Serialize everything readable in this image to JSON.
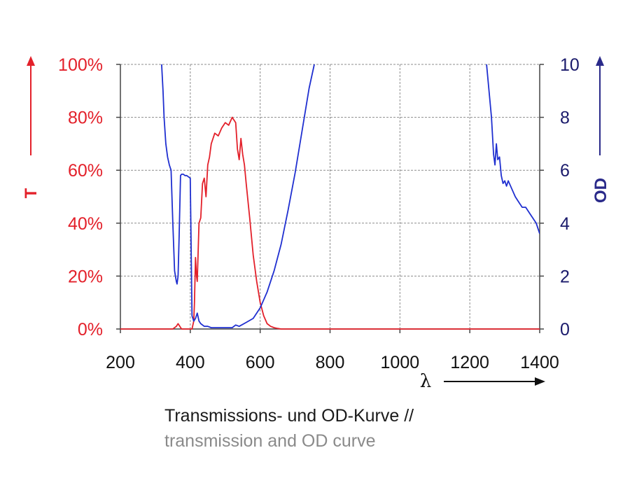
{
  "chart_data": {
    "type": "line",
    "title": "",
    "xlabel": "λ",
    "ylabel_left": "T",
    "ylabel_right": "OD",
    "xlim": [
      200,
      1400
    ],
    "ylim_left": [
      0,
      100
    ],
    "ylim_right": [
      0,
      10
    ],
    "x_ticks": [
      "200",
      "400",
      "600",
      "800",
      "1000",
      "1200",
      "1400"
    ],
    "y_ticks_left": [
      "0%",
      "20%",
      "40%",
      "60%",
      "80%",
      "100%"
    ],
    "y_ticks_right": [
      "0",
      "2",
      "4",
      "6",
      "8",
      "10"
    ],
    "grid": true,
    "colors": {
      "T": "#e3202a",
      "OD": "#1f2fd0",
      "left_axis": "#e3202a",
      "right_axis": "#1a1a6b"
    },
    "series": [
      {
        "axis": "left",
        "x": [
          200,
          350,
          360,
          365,
          370,
          375,
          380,
          405,
          410,
          412,
          415,
          418,
          420,
          425,
          430,
          435,
          440,
          445,
          450,
          455,
          460,
          470,
          480,
          490,
          500,
          510,
          520,
          530,
          535,
          540,
          545,
          550,
          555,
          560,
          570,
          580,
          590,
          600,
          610,
          620,
          630,
          640,
          650,
          660,
          1400
        ],
        "y": [
          0,
          0,
          1,
          2,
          1,
          0,
          0,
          0,
          3,
          10,
          27,
          20,
          18,
          40,
          42,
          55,
          57,
          50,
          62,
          65,
          70,
          74,
          73,
          76,
          78,
          77,
          80,
          78,
          68,
          64,
          72,
          66,
          62,
          55,
          42,
          28,
          18,
          10,
          5,
          2,
          1,
          0.5,
          0.2,
          0,
          0
        ]
      },
      {
        "axis": "right",
        "x": [
          318,
          322,
          325,
          330,
          335,
          340,
          345,
          350,
          355,
          360,
          362,
          365,
          368,
          372,
          375,
          380,
          385,
          390,
          395,
          400,
          405,
          410,
          415,
          420,
          425,
          430,
          440,
          450,
          460,
          480,
          500,
          520,
          530,
          540,
          560,
          580,
          600,
          620,
          640,
          660,
          680,
          700,
          720,
          740,
          755,
          1248,
          1255,
          1262,
          1268,
          1272,
          1276,
          1280,
          1285,
          1290,
          1295,
          1300,
          1305,
          1310,
          1320,
          1330,
          1340,
          1350,
          1360,
          1370,
          1380,
          1390,
          1400
        ],
        "y": [
          10,
          9.0,
          8.0,
          7.0,
          6.5,
          6.2,
          6.0,
          4.0,
          2.2,
          1.8,
          1.7,
          2.0,
          3.5,
          5.8,
          5.85,
          5.85,
          5.8,
          5.8,
          5.75,
          5.7,
          0.5,
          0.3,
          0.4,
          0.6,
          0.3,
          0.2,
          0.1,
          0.1,
          0.05,
          0.05,
          0.05,
          0.05,
          0.15,
          0.1,
          0.25,
          0.4,
          0.8,
          1.4,
          2.2,
          3.2,
          4.5,
          5.9,
          7.5,
          9.1,
          10,
          10,
          9.0,
          8.0,
          6.6,
          6.2,
          7.0,
          6.4,
          6.5,
          5.8,
          5.5,
          5.6,
          5.4,
          5.6,
          5.3,
          5.0,
          4.8,
          4.6,
          4.6,
          4.4,
          4.2,
          4.0,
          3.6
        ]
      }
    ]
  },
  "caption": {
    "line1": "Transmissions- und OD-Kurve //",
    "line2": "transmission and OD curve"
  }
}
